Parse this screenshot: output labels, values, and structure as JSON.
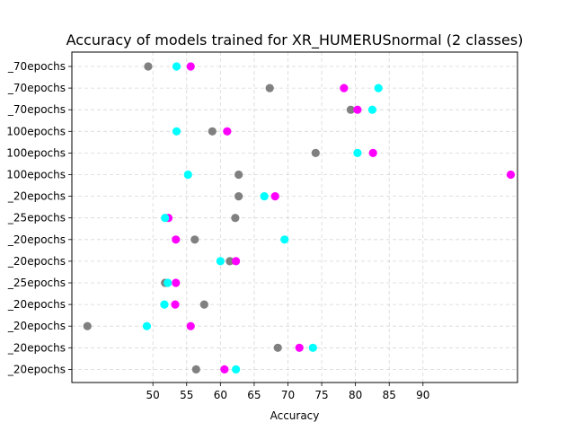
{
  "chart_data": {
    "type": "scatter",
    "title": "Accuracy of models trained for XR_HUMERUSnormal (2 classes)",
    "xlabel": "Accuracy",
    "ylabel": "",
    "xticks": [
      50,
      55,
      60,
      65,
      70,
      75,
      80,
      85,
      90
    ],
    "xlim": [
      38,
      104
    ],
    "grid": true,
    "legend": "none",
    "categories": [
      "_70epochs",
      "_70epochs",
      "_70epochs",
      "100epochs",
      "100epochs",
      "100epochs",
      "_20epochs",
      "_25epochs",
      "_20epochs",
      "_20epochs",
      "_25epochs",
      "_20epochs",
      "_20epochs",
      "_20epochs",
      "_20epochs"
    ],
    "series": [
      {
        "color": "#808080",
        "values": [
          49.3,
          67.3,
          79.3,
          58.8,
          74.1,
          62.7,
          62.7,
          62.2,
          56.2,
          61.4,
          51.8,
          57.6,
          40.3,
          68.5,
          56.4
        ]
      },
      {
        "color": "#ff00ff",
        "values": [
          55.6,
          78.3,
          80.3,
          61.0,
          82.6,
          103.0,
          68.1,
          52.3,
          53.4,
          62.3,
          53.4,
          53.3,
          55.6,
          71.7,
          60.6
        ]
      },
      {
        "color": "#00ffff",
        "values": [
          53.5,
          83.4,
          82.5,
          53.5,
          80.3,
          55.2,
          66.5,
          51.8,
          69.5,
          60.0,
          52.2,
          51.7,
          49.1,
          73.7,
          62.3
        ]
      }
    ]
  }
}
